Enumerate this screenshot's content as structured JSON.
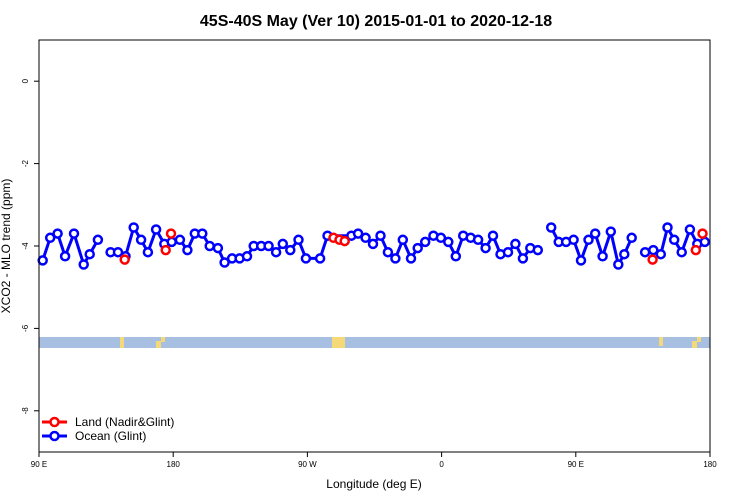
{
  "chart_data": {
    "type": "line",
    "title": "45S-40S May (Ver 10)   2015-01-01 to 2020-12-18",
    "xlabel": "Longitude (deg E)",
    "ylabel": "XCO2 - MLO trend (ppm)",
    "xlim": [
      90,
      540
    ],
    "ylim": [
      -9,
      1
    ],
    "x_ticks": [
      {
        "value": 90,
        "label": "90 E"
      },
      {
        "value": 180,
        "label": "180"
      },
      {
        "value": 270,
        "label": "90 W"
      },
      {
        "value": 360,
        "label": "0"
      },
      {
        "value": 450,
        "label": "90 E"
      },
      {
        "value": 540,
        "label": "180"
      }
    ],
    "y_ticks": [
      {
        "value": 0,
        "label": "0"
      },
      {
        "value": -2,
        "label": "-2"
      },
      {
        "value": -4,
        "label": "-4"
      },
      {
        "value": -6,
        "label": "-6"
      },
      {
        "value": -8,
        "label": "-8"
      }
    ],
    "legend_position": "bottom-left",
    "series": [
      {
        "name": "Land (Nadir&Glint)",
        "color": "#ff0000",
        "points": [
          [
            147.5,
            -4.33
          ],
          [
            175,
            -4.1
          ],
          [
            178.5,
            -3.7
          ],
          [
            287.5,
            -3.8
          ],
          [
            291.5,
            -3.85
          ],
          [
            295,
            -3.88
          ],
          [
            501.5,
            -4.33
          ],
          [
            530.5,
            -4.1
          ],
          [
            535,
            -3.7
          ]
        ]
      },
      {
        "name": "Ocean (Glint)",
        "color": "#0000ff",
        "segments": [
          [
            [
              92.5,
              -4.35
            ],
            [
              97.5,
              -3.8
            ],
            [
              102.5,
              -3.7
            ],
            [
              107.5,
              -4.25
            ],
            [
              113.5,
              -3.7
            ],
            [
              120,
              -4.45
            ],
            [
              124,
              -4.2
            ],
            [
              129.5,
              -3.85
            ]
          ],
          [
            [
              138,
              -4.15
            ],
            [
              143,
              -4.15
            ],
            [
              148,
              -4.25
            ],
            [
              153.5,
              -3.55
            ],
            [
              158.5,
              -3.85
            ],
            [
              163,
              -4.15
            ],
            [
              168.5,
              -3.6
            ],
            [
              174,
              -3.95
            ],
            [
              179,
              -3.9
            ],
            [
              184.5,
              -3.85
            ],
            [
              189.5,
              -4.1
            ],
            [
              194.5,
              -3.7
            ],
            [
              199.5,
              -3.7
            ],
            [
              204.5,
              -4.0
            ],
            [
              210,
              -4.05
            ],
            [
              214.5,
              -4.4
            ],
            [
              219.5,
              -4.3
            ],
            [
              224.5,
              -4.3
            ],
            [
              229.5,
              -4.25
            ],
            [
              234,
              -4.0
            ],
            [
              239,
              -4.0
            ],
            [
              244,
              -4.0
            ],
            [
              249,
              -4.15
            ],
            [
              253.5,
              -3.95
            ],
            [
              258.5,
              -4.1
            ],
            [
              264,
              -3.85
            ],
            [
              269,
              -4.3
            ],
            [
              278.5,
              -4.3
            ],
            [
              283.5,
              -3.75
            ],
            [
              299.5,
              -3.75
            ],
            [
              304,
              -3.7
            ],
            [
              309,
              -3.8
            ],
            [
              314,
              -3.95
            ],
            [
              319,
              -3.75
            ],
            [
              324,
              -4.15
            ],
            [
              329,
              -4.3
            ],
            [
              334,
              -3.85
            ],
            [
              339.5,
              -4.3
            ],
            [
              344,
              -4.05
            ],
            [
              349,
              -3.9
            ],
            [
              354.5,
              -3.75
            ],
            [
              359.5,
              -3.8
            ],
            [
              364.5,
              -3.9
            ],
            [
              369.5,
              -4.25
            ],
            [
              374.5,
              -3.75
            ],
            [
              379.5,
              -3.8
            ],
            [
              384.5,
              -3.85
            ],
            [
              389.5,
              -4.05
            ],
            [
              394.5,
              -3.75
            ],
            [
              399.5,
              -4.2
            ],
            [
              404.5,
              -4.15
            ],
            [
              409.5,
              -3.95
            ],
            [
              414.5,
              -4.3
            ],
            [
              419.5,
              -4.05
            ],
            [
              424.5,
              -4.1
            ]
          ],
          [
            [
              433.5,
              -3.55
            ],
            [
              438.5,
              -3.9
            ],
            [
              443.5,
              -3.9
            ],
            [
              448.5,
              -3.85
            ],
            [
              453.5,
              -4.35
            ],
            [
              458.5,
              -3.85
            ],
            [
              463,
              -3.7
            ],
            [
              468,
              -4.25
            ],
            [
              473.5,
              -3.65
            ],
            [
              478.5,
              -4.45
            ],
            [
              482.5,
              -4.2
            ],
            [
              487.5,
              -3.8
            ]
          ],
          [
            [
              496.5,
              -4.15
            ],
            [
              502,
              -4.1
            ],
            [
              507,
              -4.2
            ],
            [
              511.5,
              -3.55
            ],
            [
              516,
              -3.85
            ],
            [
              521,
              -4.15
            ],
            [
              526.5,
              -3.6
            ],
            [
              531.5,
              -3.95
            ],
            [
              536.5,
              -3.9
            ]
          ]
        ]
      }
    ]
  }
}
